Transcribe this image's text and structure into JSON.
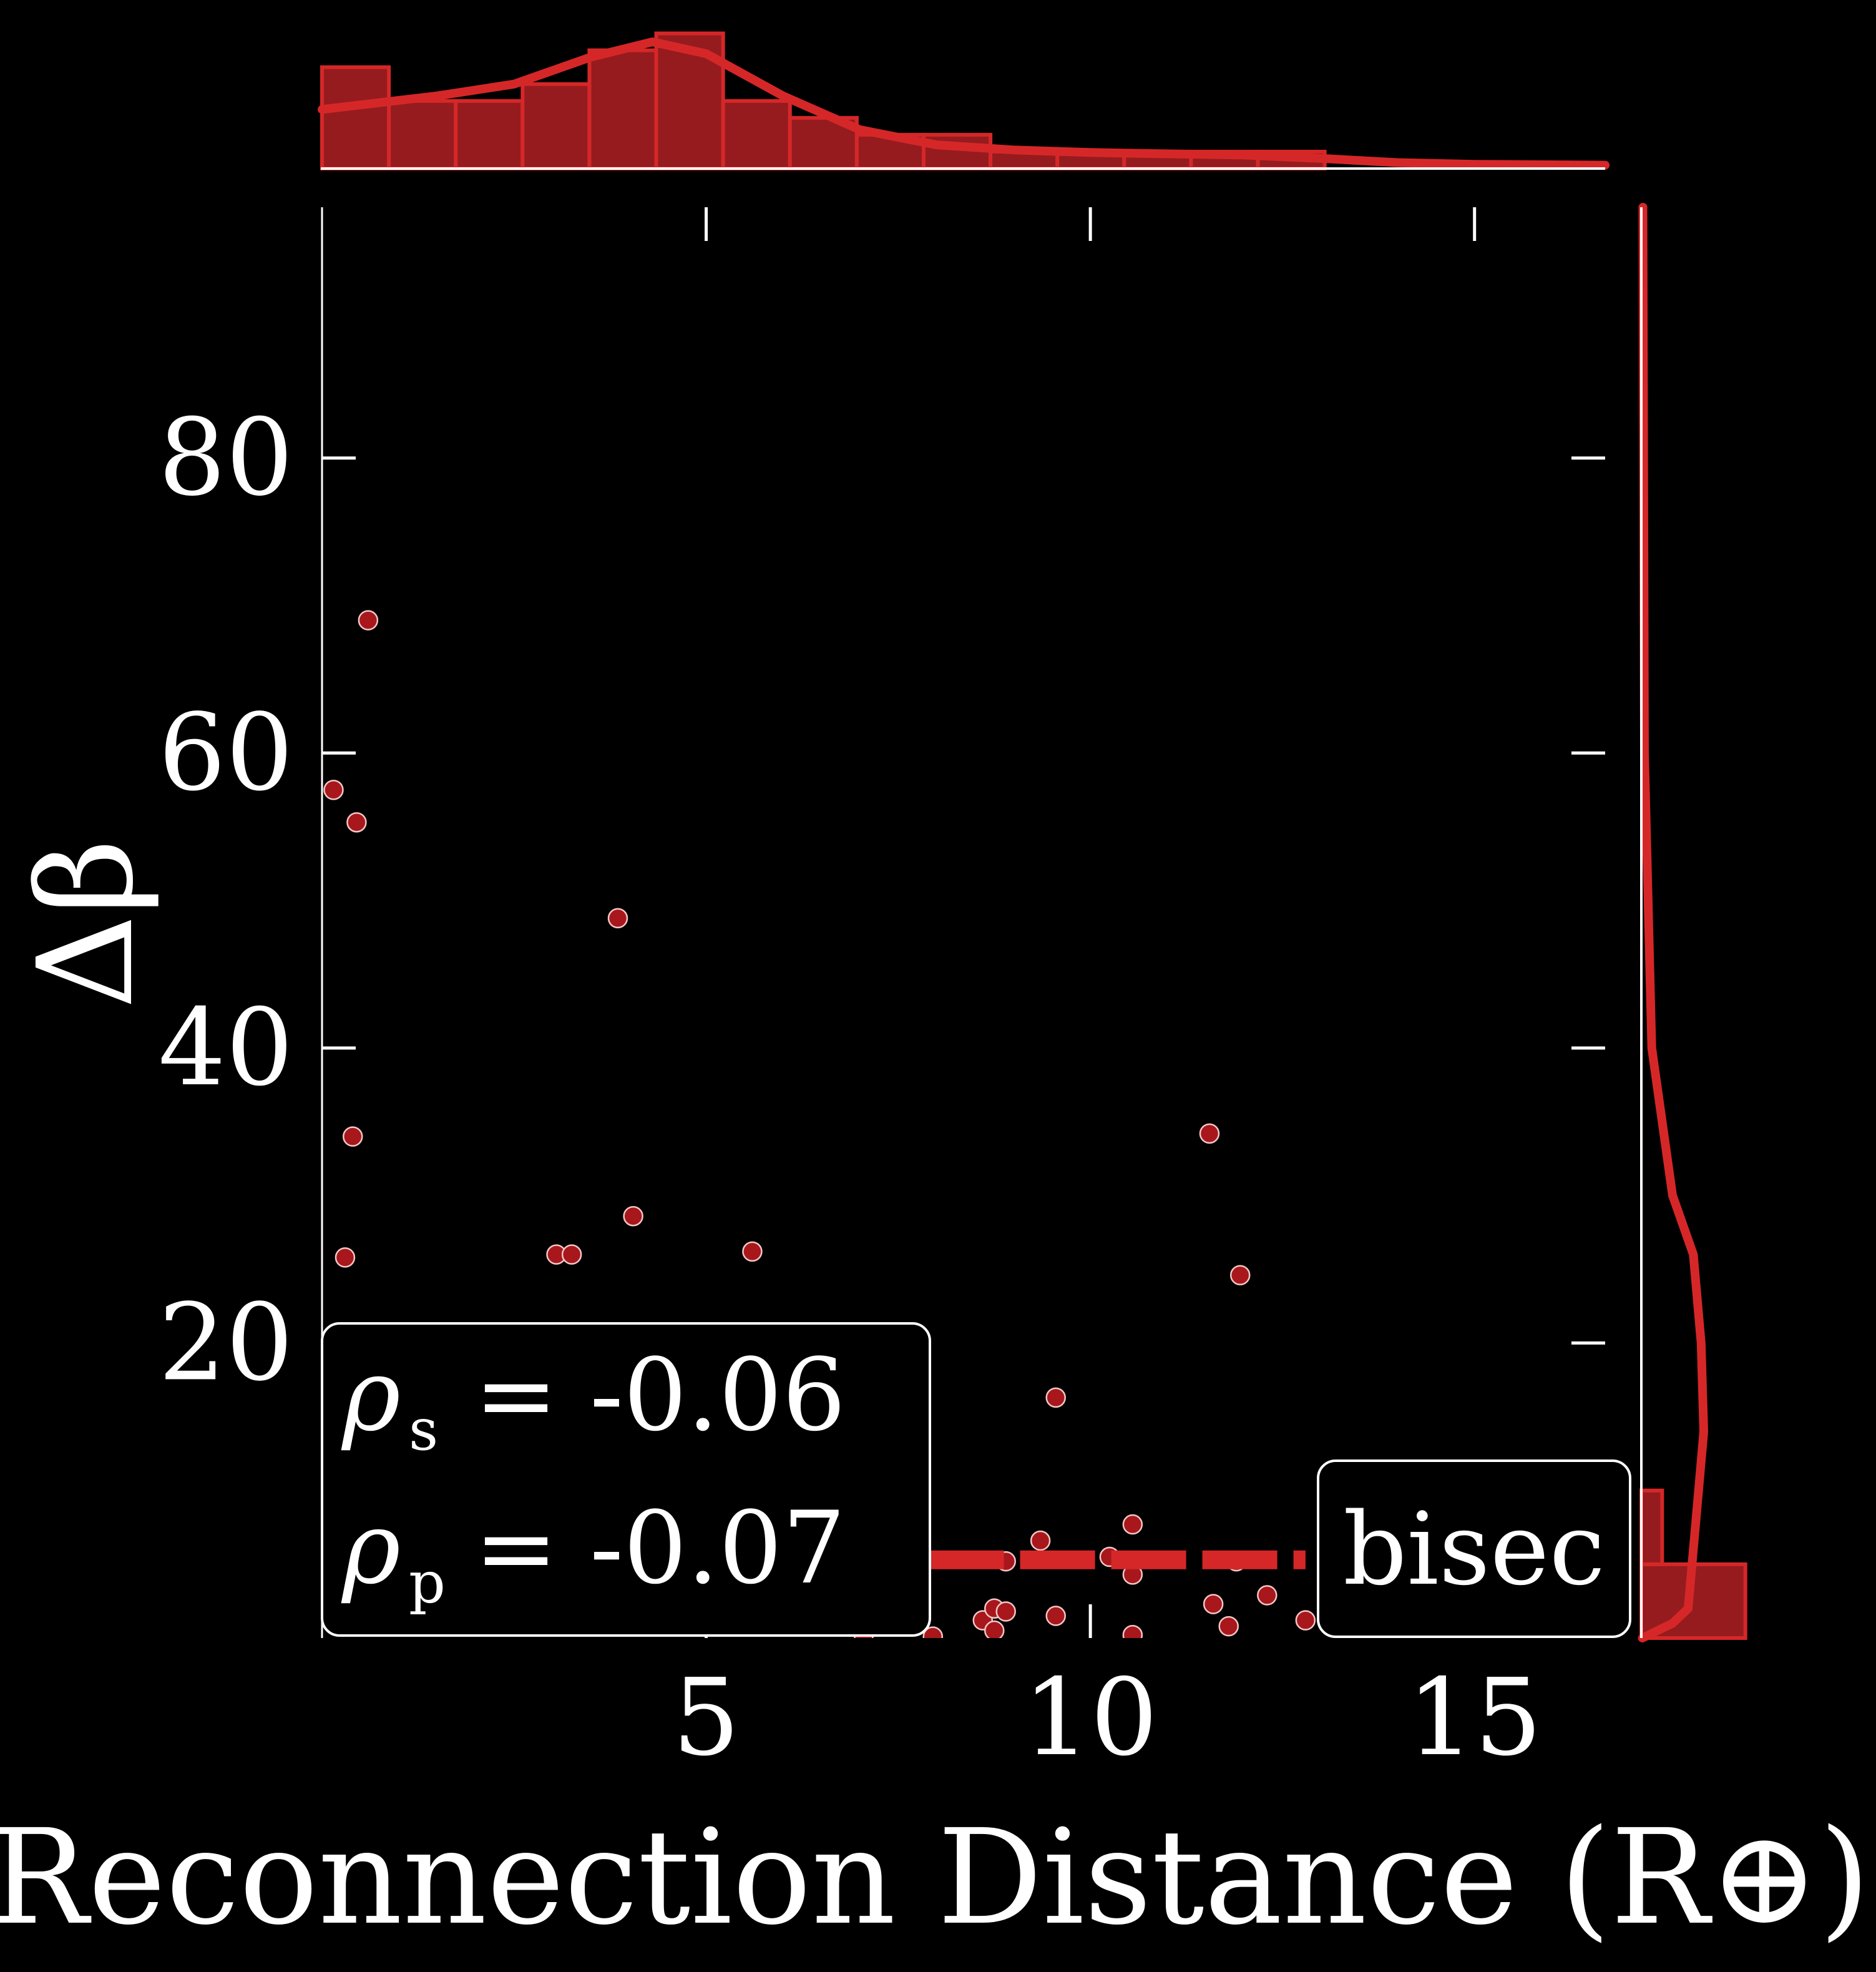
{
  "chart_data": {
    "type": "scatter",
    "xlabel": "Reconnection Distance (R⊕)",
    "ylabel": "Δβ",
    "xlim": [
      0,
      16.7
    ],
    "ylim": [
      0,
      97
    ],
    "xticks": [
      5,
      10,
      15
    ],
    "yticks": [
      20,
      40,
      60,
      80
    ],
    "grid": false,
    "points": [
      [
        0.15,
        57.5
      ],
      [
        0.3,
        25.8
      ],
      [
        0.4,
        34.0
      ],
      [
        0.45,
        55.3
      ],
      [
        0.6,
        69.0
      ],
      [
        3.05,
        26.0
      ],
      [
        3.25,
        26.0
      ],
      [
        3.85,
        48.8
      ],
      [
        4.05,
        28.6
      ],
      [
        5.6,
        26.2
      ],
      [
        9.55,
        16.3
      ],
      [
        9.35,
        6.6
      ],
      [
        9.55,
        1.5
      ],
      [
        8.9,
        5.2
      ],
      [
        8.6,
        1.2
      ],
      [
        8.75,
        0.5
      ],
      [
        8.75,
        2.0
      ],
      [
        8.9,
        1.8
      ],
      [
        7.95,
        0.1
      ],
      [
        7.05,
        0.2
      ],
      [
        10.25,
        5.5
      ],
      [
        10.55,
        7.7
      ],
      [
        10.55,
        4.3
      ],
      [
        10.55,
        0.2
      ],
      [
        11.55,
        34.2
      ],
      [
        11.6,
        2.3
      ],
      [
        11.8,
        0.8
      ],
      [
        11.9,
        5.2
      ],
      [
        11.95,
        24.6
      ],
      [
        12.3,
        2.9
      ],
      [
        12.8,
        1.2
      ]
    ],
    "points_color": "#a8171b",
    "accent_color": "#d62728",
    "bisec": {
      "label": "bisec",
      "x": [
        7.9,
        12.8
      ],
      "y": [
        5.3,
        5.3
      ],
      "style": "dashed"
    },
    "stats": {
      "rho_s": "= -0.06",
      "rho_p": "= -0.07",
      "rho_s_sub": "s",
      "rho_p_sub": "p"
    },
    "top_hist": {
      "bins": [
        0,
        0.87,
        1.74,
        2.61,
        3.48,
        4.35,
        5.22,
        6.09,
        6.96,
        7.83,
        8.7,
        9.57,
        10.44,
        11.31,
        12.18,
        13.05,
        13.92,
        14.79,
        15.66,
        16.53
      ],
      "counts": [
        6,
        4,
        4,
        5,
        7,
        8,
        4,
        3,
        2,
        2,
        1,
        1,
        1,
        1,
        1,
        0,
        0,
        0,
        0
      ],
      "kde": [
        [
          0,
          3.5
        ],
        [
          1.5,
          4.3
        ],
        [
          2.5,
          5.0
        ],
        [
          3.5,
          6.6
        ],
        [
          4.3,
          7.5
        ],
        [
          5.0,
          6.8
        ],
        [
          6.0,
          4.3
        ],
        [
          7.0,
          2.3
        ],
        [
          8.0,
          1.4
        ],
        [
          9.0,
          1.1
        ],
        [
          10.0,
          0.95
        ],
        [
          12.0,
          0.8
        ],
        [
          13.0,
          0.6
        ],
        [
          14.0,
          0.35
        ],
        [
          15.0,
          0.25
        ],
        [
          16.7,
          0.2
        ]
      ],
      "ymax": 8.5
    },
    "right_hist": {
      "bins_y": [
        0,
        5,
        10
      ],
      "counts": [
        20,
        4
      ],
      "xmax": 24
    }
  }
}
